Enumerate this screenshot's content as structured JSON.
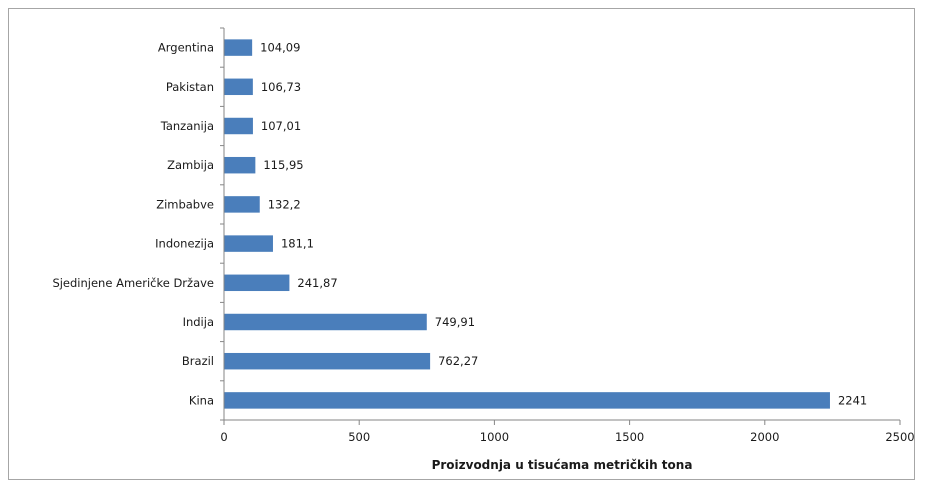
{
  "chart_data": {
    "type": "bar",
    "orientation": "horizontal",
    "title": "",
    "xlabel": "Proizvodnja u tisućama metričkih tona",
    "ylabel": "",
    "xlim": [
      0,
      2500
    ],
    "x_ticks": [
      "0",
      "500",
      "1000",
      "1500",
      "2000",
      "2500"
    ],
    "grid": false,
    "legend": "none",
    "bar_color": "#4a7ebb",
    "categories": [
      "Argentina",
      "Pakistan",
      "Tanzanija",
      "Zambija",
      "Zimbabve",
      "Indonezija",
      "Sjedinjene Američke Države",
      "Indija",
      "Brazil",
      "Kina"
    ],
    "values": [
      104.09,
      106.73,
      107.01,
      115.95,
      132.2,
      181.1,
      241.87,
      749.91,
      762.27,
      2241
    ],
    "value_labels": [
      "104,09",
      "106,73",
      "107,01",
      "115,95",
      "132,2",
      "181,1",
      "241,87",
      "749,91",
      "762,27",
      "2241"
    ]
  }
}
